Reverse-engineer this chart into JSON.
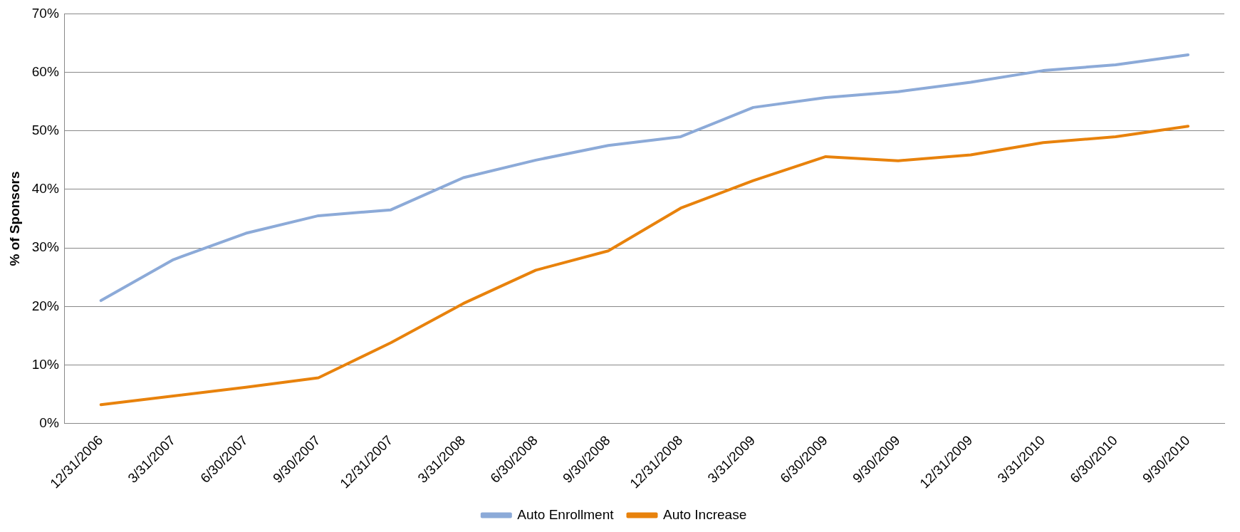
{
  "chart_data": {
    "type": "line",
    "ylabel": "% of Sponsors",
    "categories": [
      "12/31/2006",
      "3/31/2007",
      "6/30/2007",
      "9/30/2007",
      "12/31/2007",
      "3/31/2008",
      "6/30/2008",
      "9/30/2008",
      "12/31/2008",
      "3/31/2009",
      "6/30/2009",
      "9/30/2009",
      "12/31/2009",
      "3/31/2010",
      "6/30/2010",
      "9/30/2010"
    ],
    "series": [
      {
        "name": "Auto Enrollment",
        "color": "#8caad8",
        "values": [
          21,
          28,
          32.5,
          35.5,
          36.5,
          42,
          45,
          47.5,
          49,
          54,
          55.7,
          56.7,
          58.3,
          60.3,
          61.3,
          63
        ]
      },
      {
        "name": "Auto Increase",
        "color": "#e8820c",
        "values": [
          3.2,
          4.7,
          6.2,
          7.8,
          13.8,
          20.5,
          26.2,
          29.5,
          36.8,
          41.5,
          45.6,
          44.9,
          45.9,
          48,
          49,
          50.8
        ]
      }
    ],
    "ylim": [
      0,
      70
    ],
    "yticks": [
      {
        "value": 0,
        "label": "0%"
      },
      {
        "value": 10,
        "label": "10%"
      },
      {
        "value": 20,
        "label": "20%"
      },
      {
        "value": 30,
        "label": "30%"
      },
      {
        "value": 40,
        "label": "40%"
      },
      {
        "value": 50,
        "label": "50%"
      },
      {
        "value": 60,
        "label": "60%"
      },
      {
        "value": 70,
        "label": "70%"
      }
    ],
    "grid": "y",
    "legend": "bottom",
    "marker": "none",
    "line_style": "solid"
  }
}
